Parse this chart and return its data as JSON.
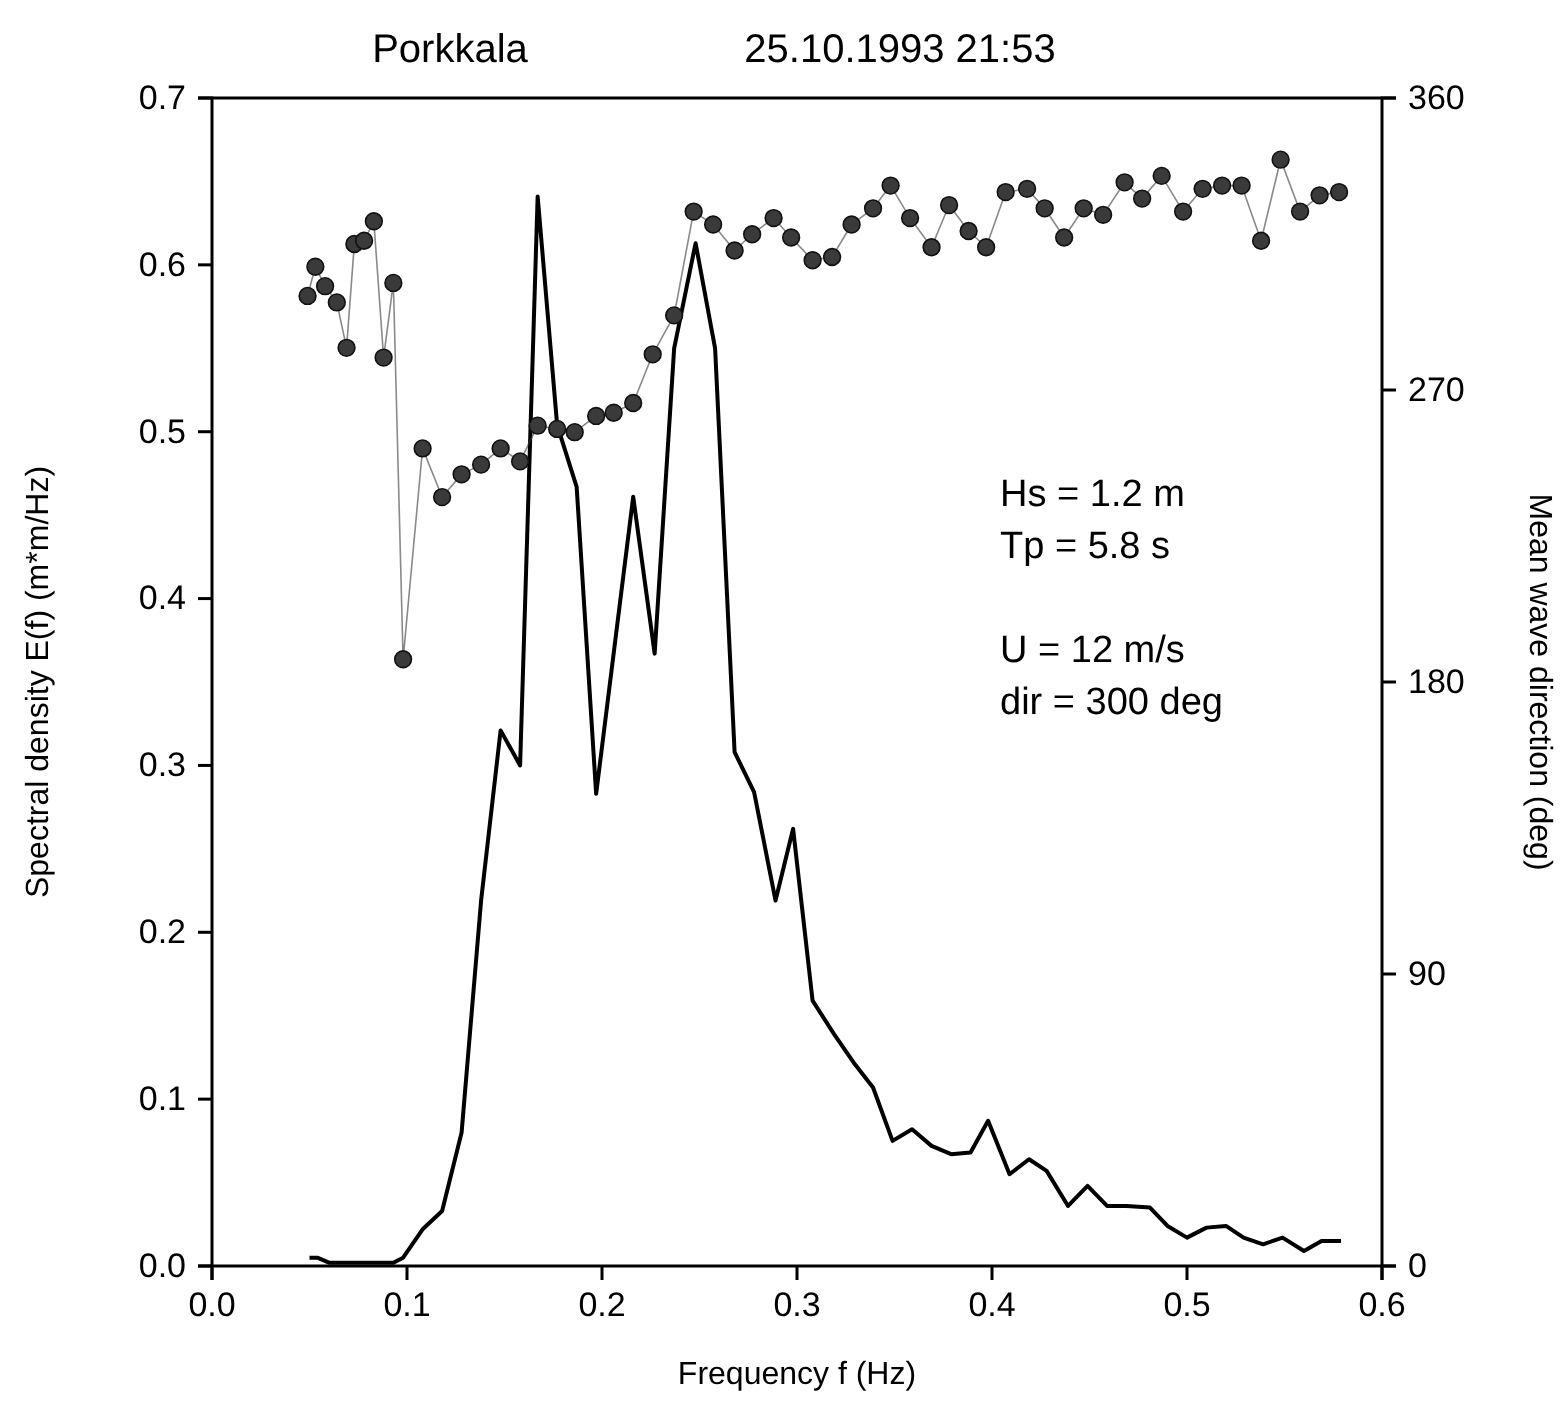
{
  "chart_data": {
    "type": "line",
    "title": "Porkkala",
    "subtitle": "25.10.1993 21:53",
    "xlabel": "Frequency f (Hz)",
    "ylabel": "Spectral density E(f) (m*m/Hz)",
    "y2label": "Mean wave direction (deg)",
    "xlim": [
      0,
      0.6
    ],
    "xticks": [
      {
        "value": 0,
        "label": "0.0"
      },
      {
        "value": 0.1,
        "label": "0.1"
      },
      {
        "value": 0.2,
        "label": "0.2"
      },
      {
        "value": 0.3,
        "label": "0.3"
      },
      {
        "value": 0.4,
        "label": "0.4"
      },
      {
        "value": 0.5,
        "label": "0.5"
      },
      {
        "value": 0.6,
        "label": "0.6"
      }
    ],
    "ylim": [
      0,
      0.7
    ],
    "yticks": [
      {
        "value": 0,
        "label": "0.0"
      },
      0.1,
      0.2,
      0.3,
      0.4,
      0.5,
      0.6,
      0.7
    ],
    "y2lim": [
      0,
      360
    ],
    "y2ticks": [
      0,
      90,
      180,
      270,
      360
    ],
    "annotations": [
      "Hs = 1.2 m",
      "Tp = 5.8 s",
      "U = 12 m/s",
      "dir = 300 deg"
    ],
    "series": [
      {
        "type": "line",
        "color": "#000000",
        "marker": "none",
        "x": [
          0.05,
          0.054,
          0.06,
          0.093,
          0.098,
          0.108,
          0.118,
          0.128,
          0.138,
          0.148,
          0.158,
          0.167,
          0.177,
          0.187,
          0.197,
          0.216,
          0.227,
          0.237,
          0.248,
          0.258,
          0.268,
          0.278,
          0.289,
          0.298,
          0.308,
          0.319,
          0.329,
          0.339,
          0.349,
          0.359,
          0.369,
          0.379,
          0.389,
          0.398,
          0.409,
          0.419,
          0.428,
          0.439,
          0.449,
          0.459,
          0.469,
          0.481,
          0.49,
          0.5,
          0.51,
          0.52,
          0.529,
          0.539,
          0.549,
          0.56,
          0.569,
          0.579
        ],
        "values": [
          0.005,
          0.005,
          0.002,
          0.002,
          0.005,
          0.022,
          0.033,
          0.08,
          0.219,
          0.321,
          0.3,
          0.641,
          0.504,
          0.467,
          0.283,
          0.461,
          0.367,
          0.55,
          0.613,
          0.55,
          0.308,
          0.284,
          0.219,
          0.262,
          0.159,
          0.139,
          0.122,
          0.107,
          0.075,
          0.082,
          0.072,
          0.067,
          0.068,
          0.087,
          0.055,
          0.064,
          0.057,
          0.036,
          0.048,
          0.036,
          0.036,
          0.035,
          0.024,
          0.017,
          0.023,
          0.024,
          0.017,
          0.013,
          0.017,
          0.009,
          0.015,
          0.015
        ]
      },
      {
        "type": "line",
        "axis": "y2",
        "color": "#3a3a3a",
        "marker": "circle",
        "x": [
          0.049,
          0.053,
          0.058,
          0.064,
          0.069,
          0.073,
          0.078,
          0.083,
          0.088,
          0.093,
          0.098,
          0.108,
          0.118,
          0.128,
          0.138,
          0.148,
          0.158,
          0.167,
          0.177,
          0.186,
          0.197,
          0.206,
          0.216,
          0.226,
          0.237,
          0.247,
          0.257,
          0.268,
          0.277,
          0.288,
          0.297,
          0.308,
          0.318,
          0.328,
          0.339,
          0.348,
          0.358,
          0.369,
          0.378,
          0.388,
          0.397,
          0.407,
          0.418,
          0.427,
          0.437,
          0.447,
          0.457,
          0.468,
          0.477,
          0.487,
          0.498,
          0.508,
          0.518,
          0.528,
          0.538,
          0.548,
          0.558,
          0.568,
          0.578
        ],
        "values": [
          299,
          308,
          302,
          297,
          283,
          315,
          316,
          322,
          280,
          303,
          187,
          252,
          237,
          244,
          247,
          252,
          248,
          259,
          258,
          257,
          262,
          263,
          266,
          281,
          293,
          325,
          321,
          313,
          318,
          323,
          317,
          310,
          311,
          321,
          326,
          333,
          323,
          314,
          327,
          319,
          314,
          331,
          332,
          326,
          317,
          326,
          324,
          334,
          329,
          336,
          325,
          332,
          333,
          333,
          316,
          341,
          325,
          330,
          331
        ]
      }
    ]
  }
}
